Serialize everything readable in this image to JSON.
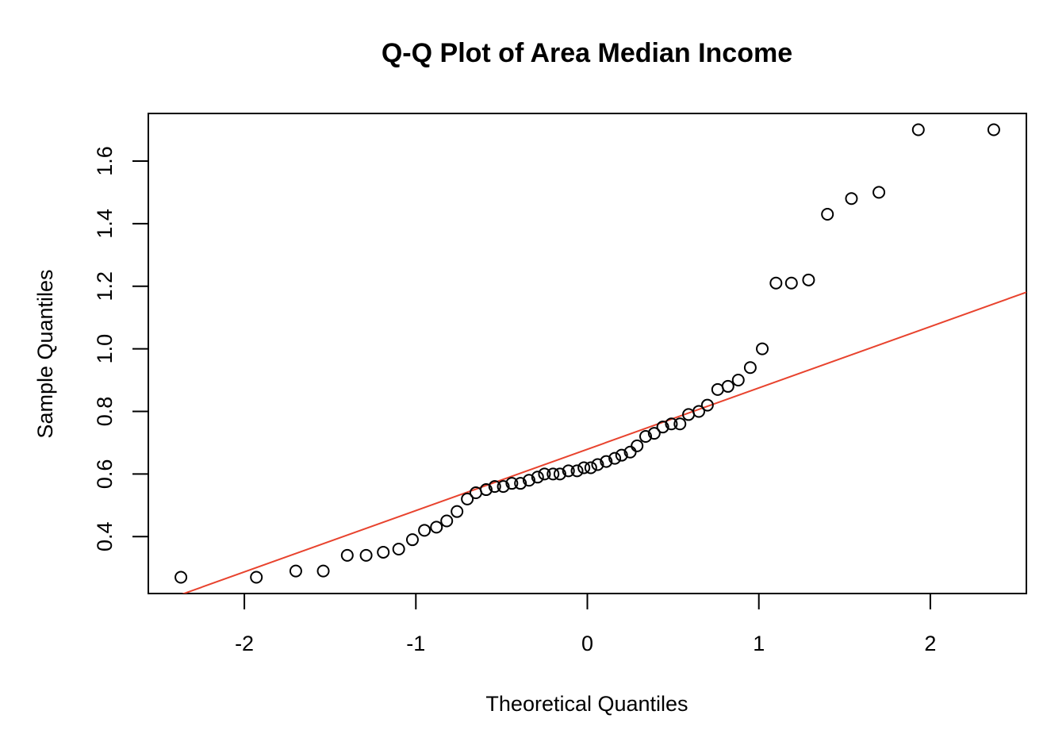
{
  "chart_data": {
    "type": "scatter",
    "title": "Q-Q Plot of Area Median Income",
    "xlabel": "Theoretical Quantiles",
    "ylabel": "Sample Quantiles",
    "xlim": [
      -2.56,
      2.56
    ],
    "ylim": [
      0.218,
      1.752
    ],
    "xticks": [
      -2,
      -1,
      0,
      1,
      2
    ],
    "xtick_labels": [
      "-2",
      "-1",
      "0",
      "1",
      "2"
    ],
    "yticks": [
      0.4,
      0.6,
      0.8,
      1.0,
      1.2,
      1.4,
      1.6
    ],
    "ytick_labels": [
      "0.4",
      "0.6",
      "0.8",
      "1.0",
      "1.2",
      "1.4",
      "1.6"
    ],
    "grid": false,
    "legend": "none",
    "point_marker": "open-circle",
    "points": [
      {
        "x": -2.37,
        "y": 0.27
      },
      {
        "x": -1.93,
        "y": 0.27
      },
      {
        "x": -1.7,
        "y": 0.29
      },
      {
        "x": -1.54,
        "y": 0.29
      },
      {
        "x": -1.4,
        "y": 0.34
      },
      {
        "x": -1.29,
        "y": 0.34
      },
      {
        "x": -1.19,
        "y": 0.35
      },
      {
        "x": -1.1,
        "y": 0.36
      },
      {
        "x": -1.02,
        "y": 0.39
      },
      {
        "x": -0.95,
        "y": 0.42
      },
      {
        "x": -0.88,
        "y": 0.43
      },
      {
        "x": -0.82,
        "y": 0.45
      },
      {
        "x": -0.76,
        "y": 0.48
      },
      {
        "x": -0.7,
        "y": 0.52
      },
      {
        "x": -0.65,
        "y": 0.54
      },
      {
        "x": -0.59,
        "y": 0.55
      },
      {
        "x": -0.54,
        "y": 0.56
      },
      {
        "x": -0.49,
        "y": 0.56
      },
      {
        "x": -0.44,
        "y": 0.57
      },
      {
        "x": -0.39,
        "y": 0.57
      },
      {
        "x": -0.34,
        "y": 0.58
      },
      {
        "x": -0.29,
        "y": 0.59
      },
      {
        "x": -0.25,
        "y": 0.6
      },
      {
        "x": -0.2,
        "y": 0.6
      },
      {
        "x": -0.16,
        "y": 0.6
      },
      {
        "x": -0.11,
        "y": 0.61
      },
      {
        "x": -0.06,
        "y": 0.61
      },
      {
        "x": -0.02,
        "y": 0.62
      },
      {
        "x": 0.02,
        "y": 0.62
      },
      {
        "x": 0.06,
        "y": 0.63
      },
      {
        "x": 0.11,
        "y": 0.64
      },
      {
        "x": 0.16,
        "y": 0.65
      },
      {
        "x": 0.2,
        "y": 0.66
      },
      {
        "x": 0.25,
        "y": 0.67
      },
      {
        "x": 0.29,
        "y": 0.69
      },
      {
        "x": 0.34,
        "y": 0.72
      },
      {
        "x": 0.39,
        "y": 0.73
      },
      {
        "x": 0.44,
        "y": 0.75
      },
      {
        "x": 0.49,
        "y": 0.76
      },
      {
        "x": 0.54,
        "y": 0.76
      },
      {
        "x": 0.59,
        "y": 0.79
      },
      {
        "x": 0.65,
        "y": 0.8
      },
      {
        "x": 0.7,
        "y": 0.82
      },
      {
        "x": 0.76,
        "y": 0.87
      },
      {
        "x": 0.82,
        "y": 0.88
      },
      {
        "x": 0.88,
        "y": 0.9
      },
      {
        "x": 0.95,
        "y": 0.94
      },
      {
        "x": 1.02,
        "y": 1.0
      },
      {
        "x": 1.1,
        "y": 1.21
      },
      {
        "x": 1.19,
        "y": 1.21
      },
      {
        "x": 1.29,
        "y": 1.22
      },
      {
        "x": 1.4,
        "y": 1.43
      },
      {
        "x": 1.54,
        "y": 1.48
      },
      {
        "x": 1.7,
        "y": 1.5
      },
      {
        "x": 1.93,
        "y": 1.7
      },
      {
        "x": 2.37,
        "y": 1.7
      }
    ],
    "reference_line": {
      "intercept": 0.679,
      "slope": 0.196,
      "color": "#e8432e"
    }
  }
}
